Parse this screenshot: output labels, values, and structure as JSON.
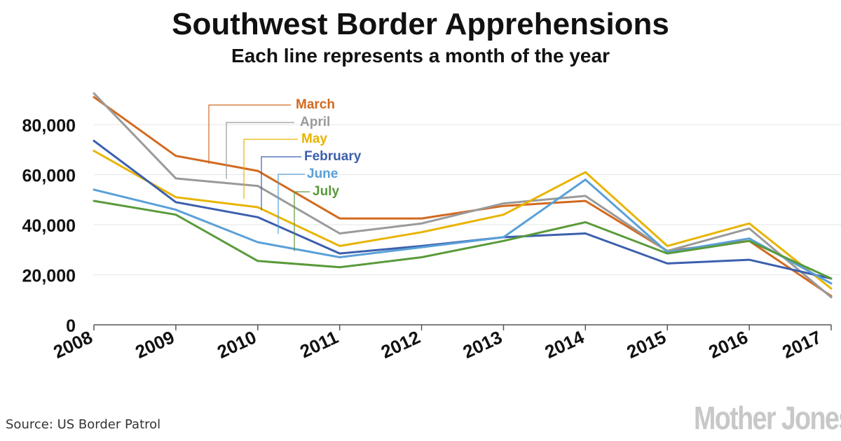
{
  "title": "Southwest Border Apprehensions",
  "subtitle": "Each line represents a month of the year",
  "source": "Source: US Border Patrol",
  "brand": "Mother Jones",
  "colors": {
    "grid": "#e6e6e6",
    "axis": "#555555",
    "text": "#111111"
  },
  "chart_data": {
    "type": "line",
    "title": "Southwest Border Apprehensions",
    "subtitle": "Each line represents a month of the year",
    "xlabel": "",
    "ylabel": "",
    "x": [
      "2008",
      "2009",
      "2010",
      "2011",
      "2012",
      "2013",
      "2014",
      "2015",
      "2016",
      "2017"
    ],
    "ylim": [
      0,
      90000
    ],
    "yticks": [
      0,
      20000,
      40000,
      60000,
      80000
    ],
    "ytick_labels": [
      "0",
      "20,000",
      "40,000",
      "60,000",
      "80,000"
    ],
    "grid": true,
    "legend": "inline labels with leader lines, upper-left",
    "series": [
      {
        "name": "March",
        "color": "#d2691e",
        "values": [
          91000,
          67500,
          61500,
          42500,
          42500,
          47500,
          49500,
          29500,
          33500,
          11500
        ]
      },
      {
        "name": "April",
        "color": "#9a9a9a",
        "values": [
          92500,
          58500,
          55500,
          36500,
          40500,
          48500,
          51500,
          29500,
          38500,
          11000
        ]
      },
      {
        "name": "May",
        "color": "#e8b400",
        "values": [
          69500,
          51000,
          47000,
          31500,
          37000,
          44000,
          61000,
          31500,
          40500,
          14500
        ]
      },
      {
        "name": "February",
        "color": "#3b5fad",
        "values": [
          73500,
          49000,
          43000,
          28500,
          31500,
          35000,
          36500,
          24500,
          26000,
          18500
        ]
      },
      {
        "name": "June",
        "color": "#5aa0d8",
        "values": [
          54000,
          46000,
          33000,
          27000,
          31000,
          35000,
          58000,
          29000,
          34500,
          16500
        ]
      },
      {
        "name": "July",
        "color": "#5a9a3a",
        "values": [
          49500,
          44000,
          25500,
          23000,
          27000,
          33500,
          41000,
          28500,
          33500,
          18500
        ]
      }
    ]
  }
}
